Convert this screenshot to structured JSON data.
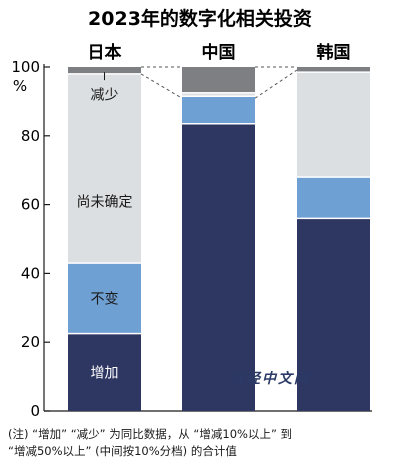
{
  "chart_data": {
    "type": "bar",
    "stacked": true,
    "title": "2023年的数字化相关投资",
    "categories": [
      "日本",
      "中国",
      "韩国"
    ],
    "ylim": [
      0,
      100
    ],
    "yticks": [
      0,
      20,
      40,
      60,
      80,
      100
    ],
    "yunit": "%",
    "series": [
      {
        "name": "增加",
        "color": "#2e3762",
        "values": [
          22.5,
          83.5,
          56
        ]
      },
      {
        "name": "不变",
        "color": "#6fa0d4",
        "values": [
          20.5,
          8,
          12
        ]
      },
      {
        "name": "尚未确定",
        "color": "#dcdfe2",
        "values": [
          55,
          1,
          30.5
        ]
      },
      {
        "name": "减少",
        "color": "#7d7f82",
        "values": [
          2,
          7.5,
          1.5
        ]
      }
    ],
    "zoom_from": "日本",
    "zoom_to": "中国"
  },
  "note": "(注) “增加” “减少” 为同比数据，从 “增减10%以上” 到\n“增减50%以上” (中间按10%分档) 的合计值",
  "watermark": "日经中文网"
}
